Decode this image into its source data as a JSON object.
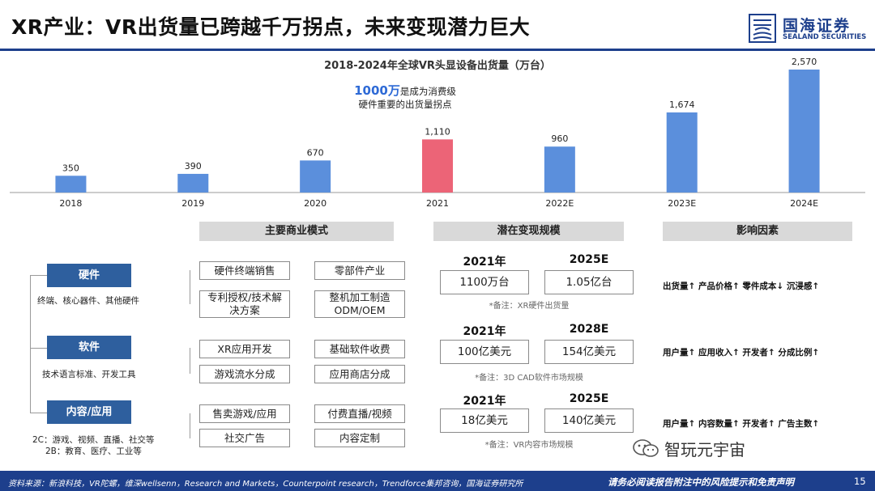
{
  "slide": {
    "title": "XR产业：VR出货量已跨越千万拐点，未来变现潜力巨大",
    "page_number": "15"
  },
  "logo": {
    "cn": "国海证券",
    "en": "SEALAND SECURITIES"
  },
  "chart_data": {
    "type": "bar",
    "title": "2018-2024年全球VR头显设备出货量（万台）",
    "categories": [
      "2018",
      "2019",
      "2020",
      "2021",
      "2022E",
      "2023E",
      "2024E"
    ],
    "values": [
      350,
      390,
      670,
      1110,
      960,
      1674,
      2570
    ],
    "value_labels": [
      "350",
      "390",
      "670",
      "1,110",
      "960",
      "1,674",
      "2,570"
    ],
    "highlight_index": 3,
    "colors": {
      "bar": "#5b8fdc",
      "highlight": "#ec6477"
    },
    "grid": false,
    "annotation": {
      "highlight": "1000万",
      "line1_rest": "是成为消费级",
      "line2": "硬件重要的出货量拐点"
    }
  },
  "headers": {
    "business": "主要商业模式",
    "potential": "潜在变现规模",
    "factors": "影响因素"
  },
  "categories": [
    {
      "name": "硬件",
      "desc": "终端、核心器件、其他硬件"
    },
    {
      "name": "软件",
      "desc": "技术语言标准、开发工具"
    },
    {
      "name": "内容/应用",
      "desc_line1": "2C：游戏、视频、直播、社交等",
      "desc_line2": "2B：教育、医疗、工业等"
    }
  ],
  "models": {
    "hardware": [
      "硬件终端销售",
      "零部件产业",
      "专利授权/技术解决方案",
      "整机加工制造ODM/OEM"
    ],
    "software": [
      "XR应用开发",
      "基础软件收费",
      "游戏流水分成",
      "应用商店分成"
    ],
    "content": [
      "售卖游戏/应用",
      "付费直播/视频",
      "社交广告",
      "内容定制"
    ]
  },
  "potential": [
    {
      "y1": "2021年",
      "v1": "1100万台",
      "y2": "2025E",
      "v2": "1.05亿台",
      "note": "*备注：XR硬件出货量"
    },
    {
      "y1": "2021年",
      "v1": "100亿美元",
      "y2": "2028E",
      "v2": "154亿美元",
      "note": "*备注：3D CAD软件市场规模"
    },
    {
      "y1": "2021年",
      "v1": "18亿美元",
      "y2": "2025E",
      "v2": "140亿美元",
      "note": "*备注：VR内容市场规模"
    }
  ],
  "factors": [
    "出货量↑  产品价格↑  零件成本↓  沉浸感↑",
    "用户量↑  应用收入↑  开发者↑  分成比例↑",
    "用户量↑  内容数量↑  开发者↑  广告主数↑"
  ],
  "watermark": "智玩元宇宙",
  "footer": {
    "source": "资料来源：新浪科技，VR陀螺，维深wellsenn，Research and Markets，Counterpoint research，Trendforce集邦咨询，国海证券研究所",
    "disclaimer": "请务必阅读报告附注中的风险提示和免责声明"
  }
}
